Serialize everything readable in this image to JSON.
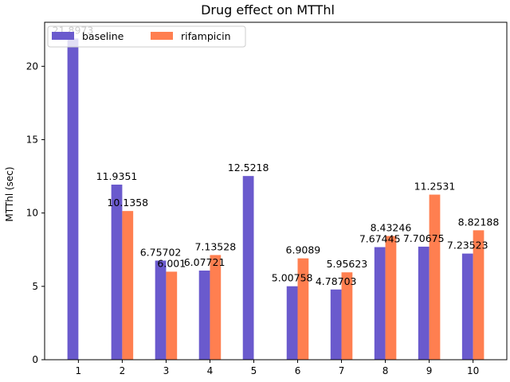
{
  "chart_data": {
    "type": "bar",
    "title": "Drug effect on MTThl",
    "xlabel": "",
    "ylabel": "MTThl (sec)",
    "ylim": [
      0,
      23
    ],
    "yticks": [
      0,
      5,
      10,
      15,
      20
    ],
    "categories": [
      "1",
      "2",
      "3",
      "4",
      "5",
      "6",
      "7",
      "8",
      "9",
      "10"
    ],
    "grid": false,
    "legend_position": "top-left",
    "series": [
      {
        "name": "baseline",
        "color": "#6a5acd",
        "values": [
          21.8973,
          11.9351,
          6.75702,
          6.07721,
          12.5218,
          5.00758,
          4.78703,
          7.67445,
          7.70675,
          7.23523
        ],
        "labels": [
          "21.8973",
          "11.9351",
          "6.75702",
          "6.07721",
          "12.5218",
          "5.00758",
          "4.78703",
          "7.67445",
          "7.70675",
          "7.23523"
        ]
      },
      {
        "name": "rifampicin",
        "color": "#ff7f50",
        "values": [
          null,
          10.1358,
          6.001,
          7.13528,
          null,
          6.9089,
          5.95623,
          8.43246,
          11.2531,
          8.82188
        ],
        "labels": [
          "",
          "10.1358",
          "6.001",
          "7.13528",
          "",
          "6.9089",
          "5.95623",
          "8.43246",
          "11.2531",
          "8.82188"
        ]
      }
    ]
  }
}
